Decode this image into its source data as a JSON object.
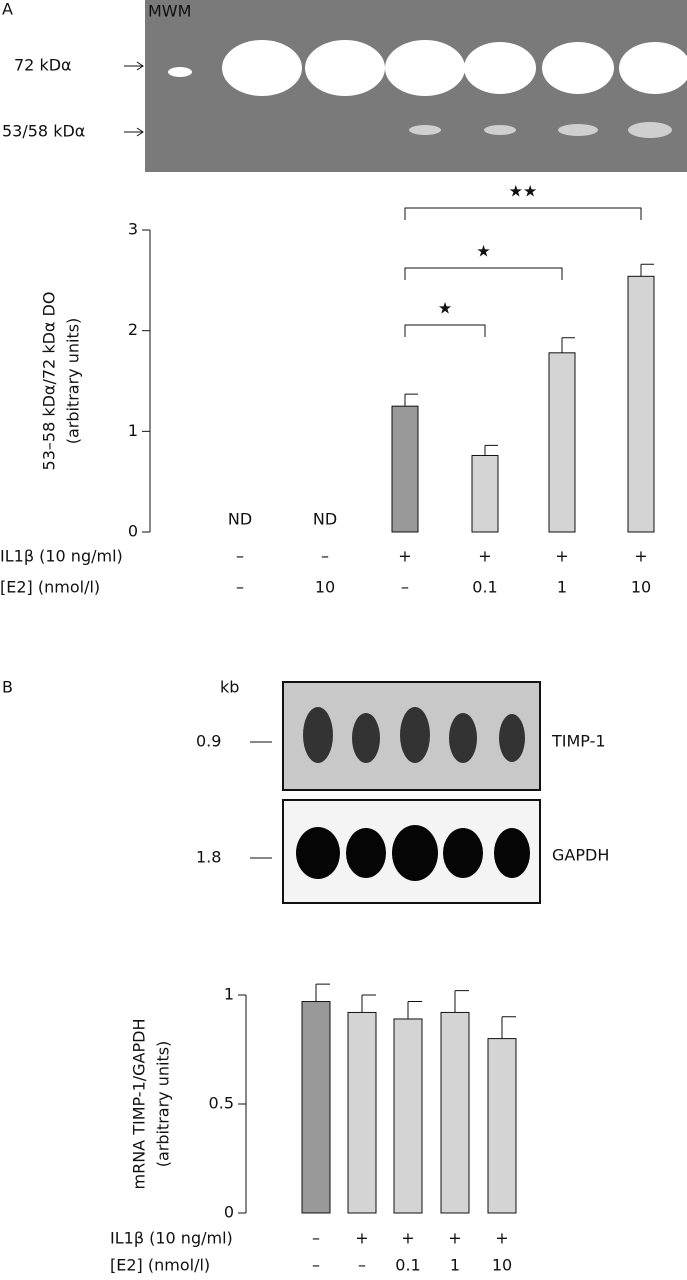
{
  "gel_a": {
    "panel": "A",
    "marker": "MWM",
    "bands": [
      "72 kDα",
      "53/58 kDα"
    ]
  },
  "gel_b": {
    "panel": "B",
    "unit": "kb",
    "sizes": [
      "0.9",
      "1.8"
    ],
    "probes": [
      "TIMP-1",
      "GAPDH"
    ]
  },
  "chart_data": [
    {
      "type": "bar",
      "ylabel": [
        "53–58 kDα/72 kDα DO",
        "(arbitrary units)"
      ],
      "values": [
        null,
        null,
        1.25,
        0.76,
        1.78,
        2.54
      ],
      "value_labels": [
        "ND",
        "ND",
        null,
        null,
        null,
        null
      ],
      "errors": [
        null,
        null,
        0.12,
        0.1,
        0.15,
        0.12
      ],
      "colors": [
        "#999999",
        "#999999",
        "#999999",
        "#d4d4d4",
        "#d4d4d4",
        "#d4d4d4"
      ],
      "conditions": [
        {
          "label": "IL1β (10 ng/ml)",
          "values": [
            "–",
            "–",
            "+",
            "+",
            "+",
            "+"
          ]
        },
        {
          "label": "[E2] (nmol/l)",
          "values": [
            "–",
            "10",
            "–",
            "0.1",
            "1",
            "10"
          ]
        }
      ],
      "significance": [
        {
          "from": 2,
          "to": 3,
          "label": "★"
        },
        {
          "from": 2,
          "to": 4,
          "label": "★"
        },
        {
          "from": 2,
          "to": 5,
          "label": "★★"
        }
      ],
      "ylim": [
        0,
        3
      ],
      "yticks": [
        0,
        1,
        2,
        3
      ]
    },
    {
      "type": "bar",
      "ylabel": [
        "mRNA TIMP-1/GAPDH",
        "(arbitrary units)"
      ],
      "values": [
        0.97,
        0.92,
        0.89,
        0.92,
        0.8
      ],
      "errors": [
        0.08,
        0.08,
        0.08,
        0.1,
        0.1
      ],
      "colors": [
        "#999999",
        "#d4d4d4",
        "#d4d4d4",
        "#d4d4d4",
        "#d4d4d4"
      ],
      "conditions": [
        {
          "label": "IL1β (10 ng/ml)",
          "values": [
            "–",
            "+",
            "+",
            "+",
            "+"
          ]
        },
        {
          "label": "[E2] (nmol/l)",
          "values": [
            "–",
            "–",
            "0.1",
            "1",
            "10"
          ]
        }
      ],
      "ylim": [
        0,
        1
      ],
      "yticks": [
        0,
        0.5,
        1
      ]
    }
  ]
}
